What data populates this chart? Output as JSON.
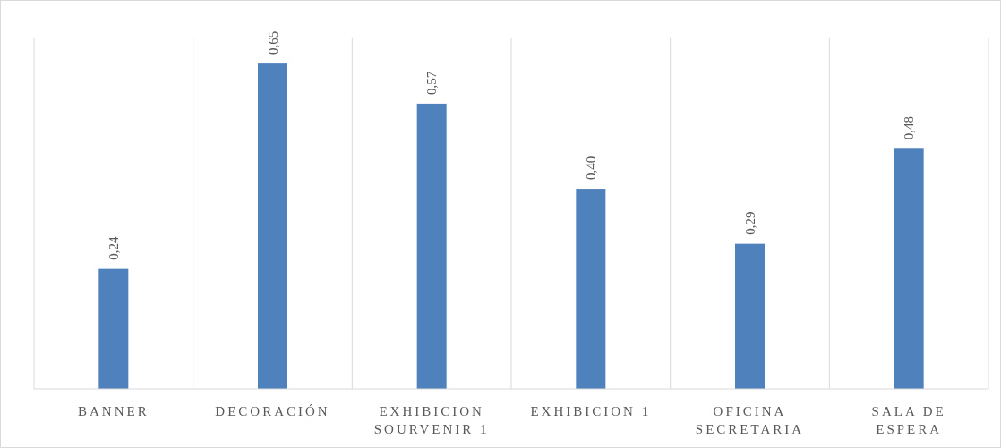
{
  "chart_data": {
    "type": "bar",
    "categories": [
      "BANNER",
      "DECORACIÓN",
      "EXHIBICION SOURVENIR 1",
      "EXHIBICION 1",
      "OFICINA SECRETARIA",
      "SALA DE ESPERA"
    ],
    "values": [
      0.24,
      0.65,
      0.57,
      0.4,
      0.29,
      0.48
    ],
    "value_labels": [
      "0,24",
      "0,65",
      "0,57",
      "0,40",
      "0,29",
      "0,48"
    ],
    "color": "#4f81bd",
    "grid": "x"
  }
}
